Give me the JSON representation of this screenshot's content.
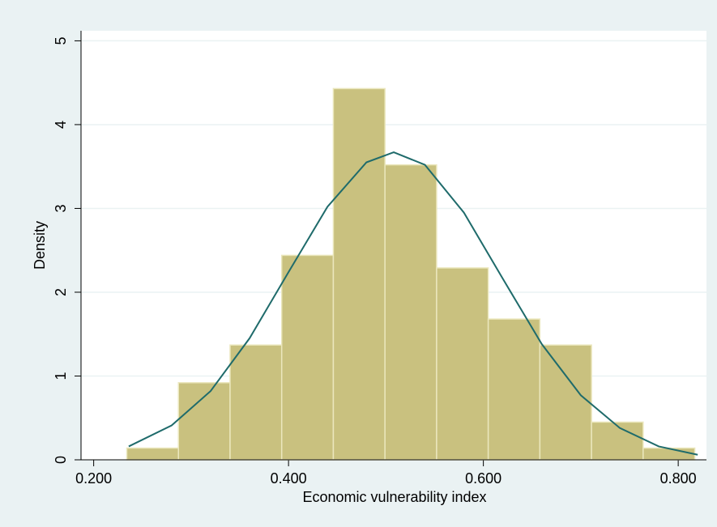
{
  "chart_data": {
    "type": "histogram",
    "xlabel": "Economic vulnerability index",
    "ylabel": "Density",
    "bins": [
      0.234,
      0.287,
      0.34,
      0.393,
      0.446,
      0.499,
      0.552,
      0.605,
      0.658,
      0.711,
      0.764,
      0.817
    ],
    "values": [
      0.14,
      0.92,
      1.37,
      2.44,
      4.43,
      3.52,
      2.29,
      1.68,
      1.37,
      0.45,
      0.14
    ],
    "color": "#c9c17f",
    "edgecolor": "#ebe7bd",
    "curve": {
      "x": [
        0.236,
        0.28,
        0.32,
        0.36,
        0.4,
        0.44,
        0.48,
        0.508,
        0.54,
        0.58,
        0.62,
        0.66,
        0.7,
        0.74,
        0.78,
        0.82
      ],
      "values": [
        0.16,
        0.41,
        0.82,
        1.45,
        2.24,
        3.02,
        3.55,
        3.67,
        3.52,
        2.95,
        2.16,
        1.38,
        0.77,
        0.38,
        0.16,
        0.06
      ],
      "color": "#1f6b6b"
    },
    "xlim": [
      0.187,
      0.829
    ],
    "ylim": [
      0,
      5.12
    ],
    "xticks": [
      {
        "value": 0.2,
        "label": "0.200"
      },
      {
        "value": 0.4,
        "label": "0.400"
      },
      {
        "value": 0.6,
        "label": "0.600"
      },
      {
        "value": 0.8,
        "label": "0.800"
      }
    ],
    "yticks": [
      0,
      1,
      2,
      3,
      4,
      5
    ],
    "grid": true
  }
}
